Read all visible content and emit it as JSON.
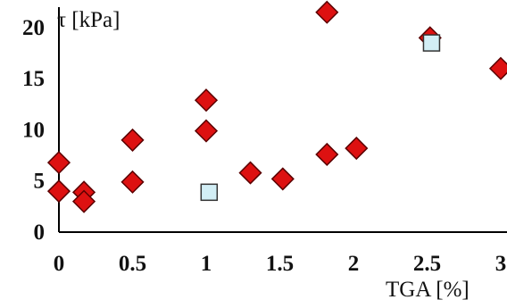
{
  "chart_data": {
    "type": "scatter",
    "xlabel": "TGA [%]",
    "ylabel": "τ [kPa]",
    "xlim": [
      0,
      3
    ],
    "ylim": [
      0,
      22
    ],
    "x_ticks": [
      "0",
      "0.5",
      "1",
      "1.5",
      "2",
      "2.5",
      "3"
    ],
    "y_ticks": [
      "0",
      "5",
      "10",
      "15",
      "20"
    ],
    "grid": false,
    "series": [
      {
        "marker": "diamond",
        "color": "#dd1111",
        "points": [
          {
            "x": 0.0,
            "y": 6.8
          },
          {
            "x": 0.0,
            "y": 4.0
          },
          {
            "x": 0.17,
            "y": 3.9
          },
          {
            "x": 0.17,
            "y": 3.0
          },
          {
            "x": 0.5,
            "y": 9.0
          },
          {
            "x": 0.5,
            "y": 4.9
          },
          {
            "x": 1.0,
            "y": 12.9
          },
          {
            "x": 1.0,
            "y": 9.9
          },
          {
            "x": 1.3,
            "y": 5.8
          },
          {
            "x": 1.52,
            "y": 5.2
          },
          {
            "x": 1.82,
            "y": 7.6
          },
          {
            "x": 1.82,
            "y": 21.5
          },
          {
            "x": 2.02,
            "y": 8.2
          },
          {
            "x": 2.52,
            "y": 19.0
          },
          {
            "x": 3.0,
            "y": 16.0
          }
        ]
      },
      {
        "marker": "square",
        "color": "#d2eef5",
        "points": [
          {
            "x": 1.02,
            "y": 3.9
          },
          {
            "x": 2.53,
            "y": 18.5
          }
        ]
      }
    ]
  }
}
